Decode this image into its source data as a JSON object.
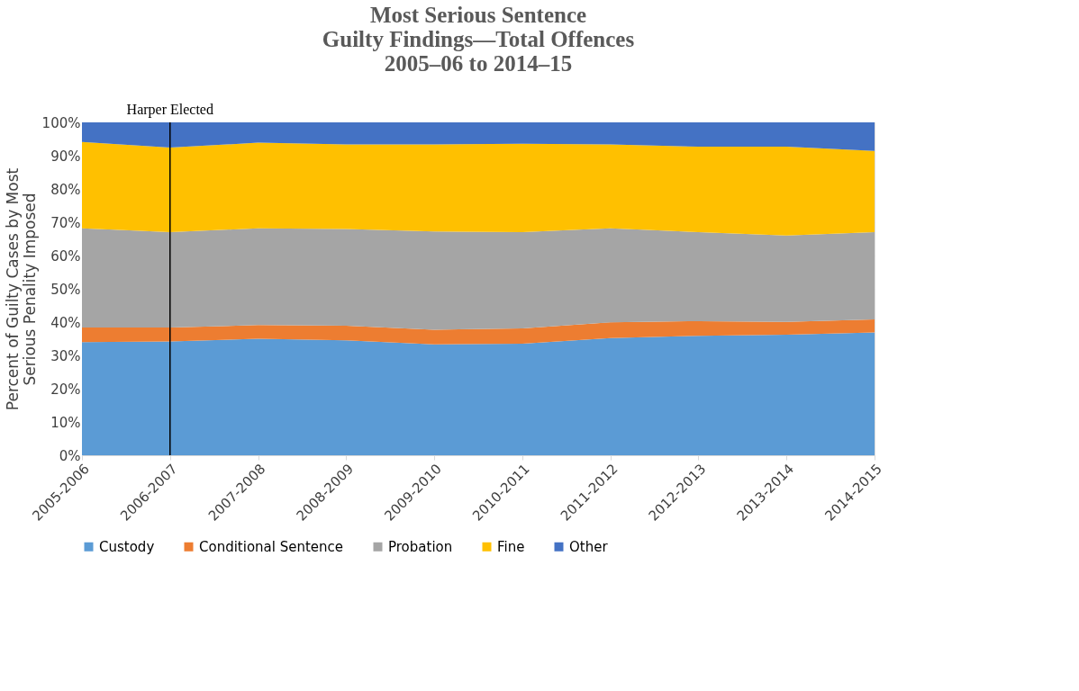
{
  "chart_data": {
    "type": "area",
    "title": "Most Serious Sentence\nGuilty Findings—Total Offences\n2005–06 to 2014–15",
    "ylabel": "Percent of Guilty Cases by Most\nSerious Penality Imposed",
    "categories": [
      "2005-2006",
      "2006-2007",
      "2007-2008",
      "2008-2009",
      "2009-2010",
      "2010-2011",
      "2011-2012",
      "2012-2013",
      "2013-2014",
      "2014-2015"
    ],
    "stacked": true,
    "series": [
      {
        "name": "Custody",
        "color": "#5b9bd5",
        "values": [
          34.0,
          34.2,
          35.0,
          34.5,
          33.3,
          33.5,
          35.2,
          35.9,
          36.2,
          36.9
        ]
      },
      {
        "name": "Conditional Sentence",
        "color": "#ed7d31",
        "values": [
          4.4,
          4.2,
          4.1,
          4.4,
          4.4,
          4.6,
          4.7,
          4.4,
          3.9,
          3.9
        ]
      },
      {
        "name": "Probation",
        "color": "#a5a5a5",
        "values": [
          29.8,
          28.6,
          29.1,
          29.1,
          29.5,
          28.9,
          28.3,
          26.7,
          25.9,
          26.2
        ]
      },
      {
        "name": "Fine",
        "color": "#ffc000",
        "values": [
          25.9,
          25.4,
          25.7,
          25.4,
          26.2,
          26.6,
          25.2,
          25.7,
          26.7,
          24.4
        ]
      },
      {
        "name": "Other",
        "color": "#4472c4",
        "values": [
          5.9,
          7.6,
          6.1,
          6.6,
          6.6,
          6.4,
          6.6,
          7.3,
          7.3,
          8.6
        ]
      }
    ],
    "ylim": [
      0,
      100
    ],
    "yticks": [
      {
        "value": 0,
        "label": "0%"
      },
      {
        "value": 10,
        "label": "10%"
      },
      {
        "value": 20,
        "label": "20%"
      },
      {
        "value": 30,
        "label": "30%"
      },
      {
        "value": 40,
        "label": "40%"
      },
      {
        "value": 50,
        "label": "50%"
      },
      {
        "value": 60,
        "label": "60%"
      },
      {
        "value": 70,
        "label": "70%"
      },
      {
        "value": 80,
        "label": "80%"
      },
      {
        "value": 90,
        "label": "90%"
      },
      {
        "value": 100,
        "label": "100%"
      }
    ],
    "ref_lines": [
      {
        "axis": "x",
        "value": "2006-2007",
        "label": "Harper Elected",
        "color": "#000000"
      }
    ],
    "grid": "y",
    "legend": "bottom"
  }
}
